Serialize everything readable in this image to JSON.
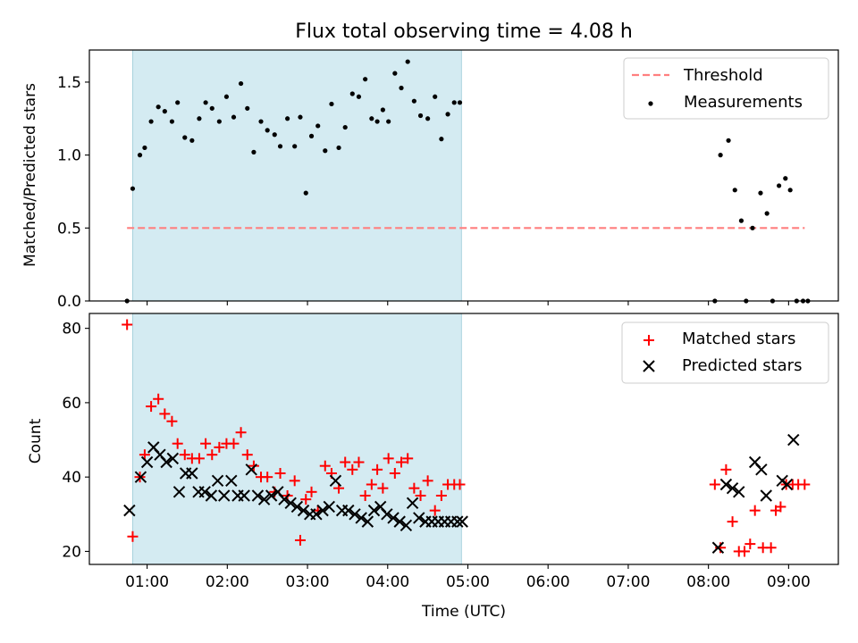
{
  "title": "Flux total observing time = 4.08 h",
  "colors": {
    "shade": "#add8e6",
    "threshold": "#ff7f7f",
    "measurement": "#000000",
    "matched": "#ff0000",
    "predicted": "#000000"
  },
  "chart_data": [
    {
      "type": "scatter",
      "ylabel": "Matched/Predicted stars",
      "ylim": [
        0,
        1.72
      ],
      "xlim": [
        0.28,
        9.62
      ],
      "y_ticks": [
        0.0,
        0.5,
        1.0,
        1.5
      ],
      "y_tick_labels": [
        "0.0",
        "0.5",
        "1.0",
        "1.5"
      ],
      "shaded_span": [
        0.82,
        4.92
      ],
      "legend": {
        "placement": "top-right",
        "entries": [
          "Threshold",
          "Measurements"
        ]
      },
      "threshold": {
        "name": "Threshold",
        "y": 0.5,
        "x_range": [
          0.75,
          9.2
        ]
      },
      "series": [
        {
          "name": "Measurements",
          "x": [
            0.75,
            0.82,
            0.91,
            0.97,
            1.05,
            1.14,
            1.22,
            1.31,
            1.38,
            1.47,
            1.56,
            1.65,
            1.73,
            1.81,
            1.9,
            1.99,
            2.08,
            2.17,
            2.25,
            2.33,
            2.42,
            2.5,
            2.59,
            2.66,
            2.75,
            2.84,
            2.91,
            2.98,
            3.05,
            3.13,
            3.22,
            3.3,
            3.39,
            3.47,
            3.56,
            3.64,
            3.72,
            3.8,
            3.87,
            3.94,
            4.01,
            4.09,
            4.17,
            4.25,
            4.33,
            4.41,
            4.5,
            4.59,
            4.67,
            4.75,
            4.83,
            4.9,
            8.08,
            8.15,
            8.25,
            8.33,
            8.41,
            8.47,
            8.55,
            8.65,
            8.73,
            8.8,
            8.88,
            8.96,
            9.02,
            9.1,
            9.18,
            9.24
          ],
          "y": [
            0.0,
            0.77,
            1.0,
            1.05,
            1.23,
            1.33,
            1.3,
            1.23,
            1.36,
            1.12,
            1.1,
            1.25,
            1.36,
            1.32,
            1.23,
            1.4,
            1.26,
            1.49,
            1.32,
            1.02,
            1.23,
            1.17,
            1.14,
            1.06,
            1.25,
            1.06,
            1.26,
            0.74,
            1.13,
            1.2,
            1.03,
            1.35,
            1.05,
            1.19,
            1.42,
            1.4,
            1.52,
            1.25,
            1.23,
            1.31,
            1.23,
            1.56,
            1.46,
            1.64,
            1.37,
            1.27,
            1.25,
            1.4,
            1.11,
            1.28,
            1.36,
            1.36,
            0.0,
            1.0,
            1.1,
            0.76,
            0.55,
            0.0,
            0.5,
            0.74,
            0.6,
            0.0,
            0.79,
            0.84,
            0.76,
            0.0,
            0.0,
            0.0
          ]
        }
      ]
    },
    {
      "type": "scatter",
      "ylabel": "Count",
      "xlabel": "Time (UTC)",
      "ylim": [
        16.5,
        84
      ],
      "xlim": [
        0.28,
        9.62
      ],
      "y_ticks": [
        20,
        40,
        60,
        80
      ],
      "y_tick_labels": [
        "20",
        "40",
        "60",
        "80"
      ],
      "x_ticks": [
        1,
        2,
        3,
        4,
        5,
        6,
        7,
        8,
        9
      ],
      "x_tick_labels": [
        "01:00",
        "02:00",
        "03:00",
        "04:00",
        "05:00",
        "06:00",
        "07:00",
        "08:00",
        "09:00"
      ],
      "shaded_span": [
        0.82,
        4.92
      ],
      "legend": {
        "placement": "top-right",
        "entries": [
          "Matched stars",
          "Predicted stars"
        ]
      },
      "series": [
        {
          "name": "Matched stars",
          "marker": "plus",
          "x": [
            0.75,
            0.82,
            0.91,
            0.97,
            1.05,
            1.14,
            1.22,
            1.31,
            1.38,
            1.47,
            1.56,
            1.65,
            1.73,
            1.81,
            1.9,
            1.99,
            2.08,
            2.17,
            2.25,
            2.33,
            2.42,
            2.5,
            2.59,
            2.66,
            2.75,
            2.84,
            2.91,
            2.98,
            3.05,
            3.13,
            3.22,
            3.3,
            3.39,
            3.47,
            3.56,
            3.64,
            3.72,
            3.8,
            3.87,
            3.94,
            4.01,
            4.09,
            4.17,
            4.25,
            4.33,
            4.41,
            4.5,
            4.59,
            4.67,
            4.75,
            4.83,
            4.9,
            8.08,
            8.15,
            8.22,
            8.3,
            8.38,
            8.45,
            8.52,
            8.58,
            8.68,
            8.78,
            8.84,
            8.9,
            8.97,
            9.05,
            9.12,
            9.2
          ],
          "y": [
            81,
            24,
            40,
            46,
            59,
            61,
            57,
            55,
            49,
            46,
            45,
            45,
            49,
            46,
            48,
            49,
            49,
            52,
            46,
            43,
            40,
            40,
            36,
            41,
            35,
            39,
            23,
            34,
            36,
            31,
            43,
            41,
            37,
            44,
            42,
            44,
            35,
            38,
            42,
            37,
            45,
            41,
            44,
            45,
            37,
            35,
            39,
            31,
            35,
            38,
            38,
            38,
            38,
            21,
            42,
            28,
            20,
            20,
            22,
            31,
            21,
            21,
            31,
            32,
            38,
            38,
            38,
            38
          ],
          "note": ""
        },
        {
          "name": "Predicted stars",
          "marker": "x",
          "x": [
            0.78,
            0.92,
            1.0,
            1.08,
            1.16,
            1.24,
            1.32,
            1.4,
            1.48,
            1.56,
            1.64,
            1.72,
            1.8,
            1.88,
            1.96,
            2.05,
            2.13,
            2.21,
            2.3,
            2.38,
            2.46,
            2.55,
            2.63,
            2.71,
            2.79,
            2.87,
            2.95,
            3.03,
            3.11,
            3.19,
            3.27,
            3.35,
            3.43,
            3.51,
            3.59,
            3.67,
            3.75,
            3.83,
            3.91,
            3.99,
            4.07,
            4.15,
            4.23,
            4.31,
            4.39,
            4.47,
            4.55,
            4.63,
            4.71,
            4.79,
            4.87,
            4.93,
            8.12,
            8.22,
            8.3,
            8.38,
            8.58,
            8.66,
            8.72,
            8.92,
            8.98,
            9.06
          ],
          "y": [
            31,
            40,
            44,
            48,
            46,
            44,
            45,
            36,
            41,
            41,
            36,
            36,
            35,
            39,
            35,
            39,
            35,
            35,
            42,
            35,
            34,
            35,
            36,
            34,
            33,
            32,
            31,
            30,
            30,
            31,
            32,
            39,
            31,
            31,
            30,
            29,
            28,
            31,
            32,
            30,
            29,
            28,
            27,
            33,
            29,
            28,
            28,
            28,
            28,
            28,
            28,
            28,
            21,
            38,
            37,
            36,
            44,
            42,
            35,
            39,
            38,
            50
          ]
        }
      ]
    }
  ]
}
